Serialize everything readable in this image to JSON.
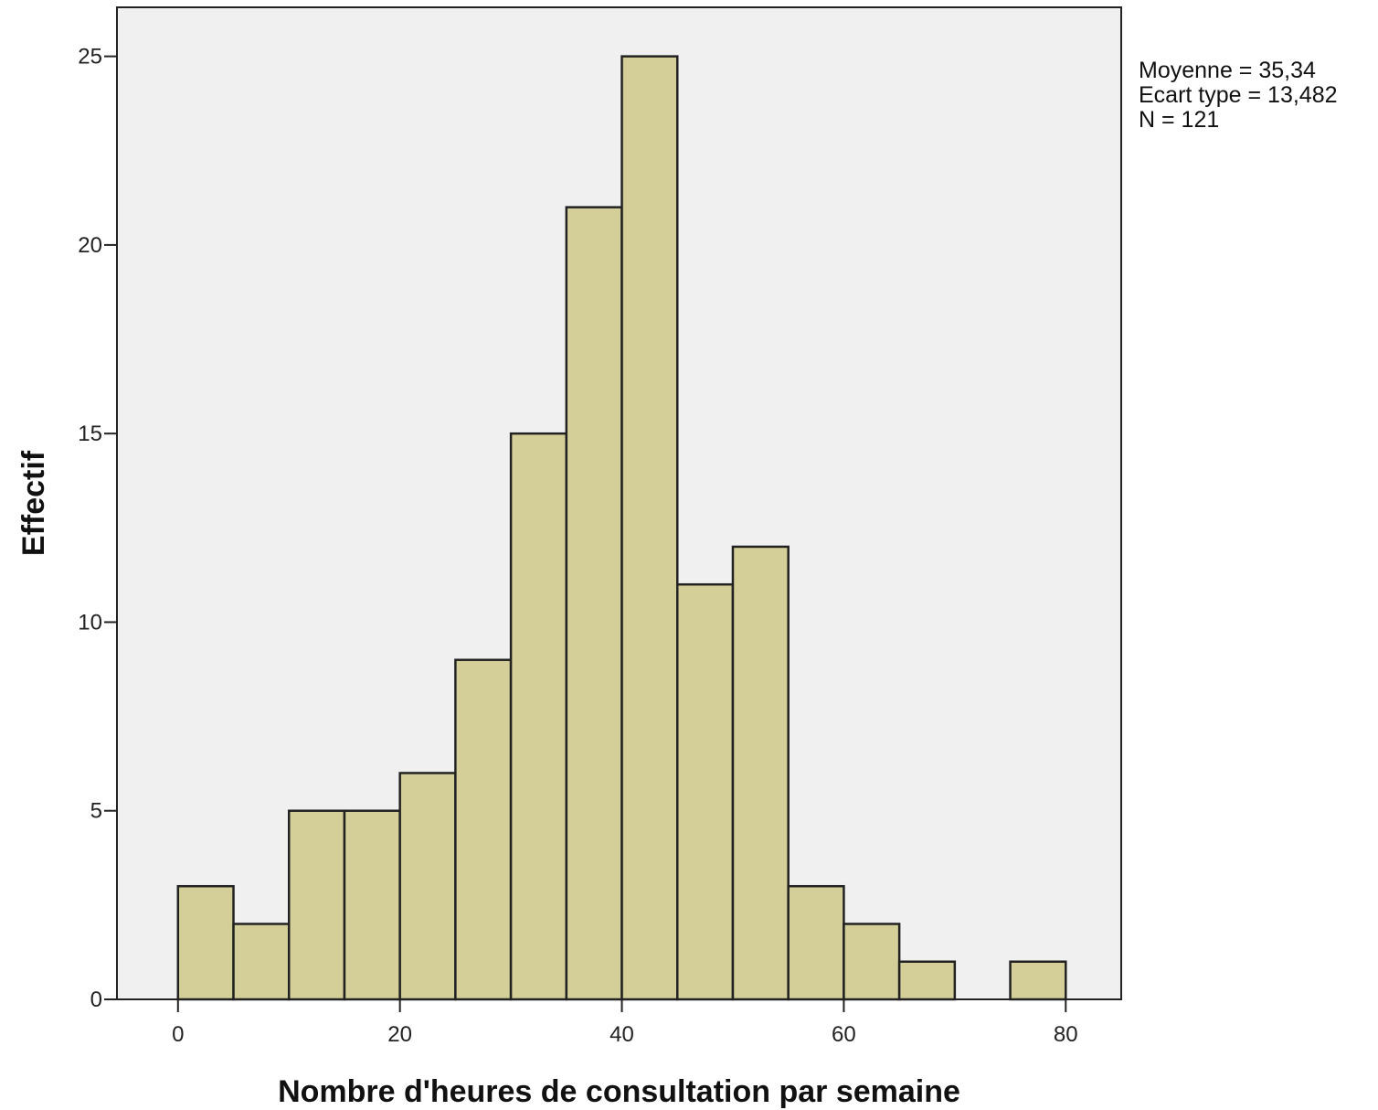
{
  "chart_data": {
    "type": "bar",
    "xlabel": "Nombre d'heures de consultation par semaine",
    "ylabel": "Effectif",
    "xlim": [
      -5.5,
      85
    ],
    "ylim": [
      0,
      26.3
    ],
    "x_ticks": [
      0,
      20,
      40,
      60,
      80
    ],
    "y_ticks": [
      0,
      5,
      10,
      15,
      20,
      25
    ],
    "grid": false,
    "bins": [
      {
        "start": 0,
        "end": 5,
        "count": 3
      },
      {
        "start": 5,
        "end": 10,
        "count": 2
      },
      {
        "start": 10,
        "end": 15,
        "count": 5
      },
      {
        "start": 15,
        "end": 20,
        "count": 5
      },
      {
        "start": 20,
        "end": 25,
        "count": 6
      },
      {
        "start": 25,
        "end": 30,
        "count": 9
      },
      {
        "start": 30,
        "end": 35,
        "count": 15
      },
      {
        "start": 35,
        "end": 40,
        "count": 21
      },
      {
        "start": 40,
        "end": 45,
        "count": 25
      },
      {
        "start": 45,
        "end": 50,
        "count": 11
      },
      {
        "start": 50,
        "end": 55,
        "count": 12
      },
      {
        "start": 55,
        "end": 60,
        "count": 3
      },
      {
        "start": 60,
        "end": 65,
        "count": 2
      },
      {
        "start": 65,
        "end": 70,
        "count": 1
      },
      {
        "start": 70,
        "end": 75,
        "count": 0
      },
      {
        "start": 75,
        "end": 80,
        "count": 1
      }
    ],
    "stats": {
      "mean": "Moyenne = 35,34",
      "std": "Ecart type = 13,482",
      "n": "N = 121"
    },
    "colors": {
      "bar_fill": "#d4cf98",
      "bar_stroke": "#222222",
      "plot_background": "#f0f0f0"
    }
  }
}
